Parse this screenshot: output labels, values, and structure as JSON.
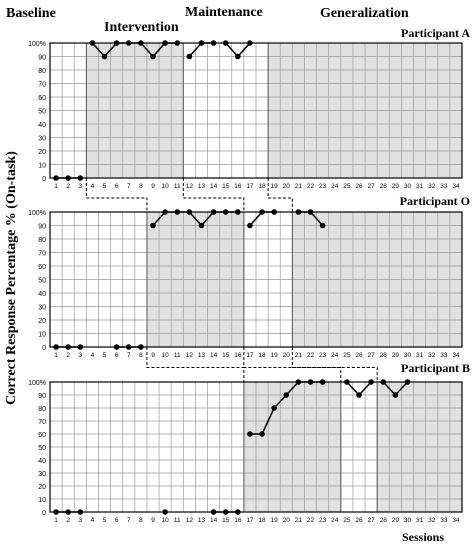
{
  "phase_labels": {
    "baseline": "Baseline",
    "intervention": "Intervention",
    "maintenance": "Maintenance",
    "generalization": "Generalization"
  },
  "ylabel": "Correct Response Percentage % (On-task)",
  "xlabel": "Sessions",
  "colors": {
    "shade": "#e0e0e0",
    "grid": "#9a9a9a",
    "line": "#000000"
  },
  "chart_data": [
    {
      "type": "line",
      "title": "Participant A",
      "ylim": [
        0,
        100
      ],
      "yticks": [
        "0",
        "10",
        "20",
        "30",
        "40",
        "50",
        "60",
        "70",
        "80",
        "90",
        "100%"
      ],
      "xticks": [
        "1",
        "2",
        "3",
        "4",
        "5",
        "6",
        "7",
        "8",
        "9",
        "10",
        "11",
        "12",
        "13",
        "14",
        "15",
        "16",
        "17",
        "18",
        "19",
        "20",
        "21",
        "22",
        "23",
        "24",
        "25",
        "26",
        "27",
        "28",
        "29",
        "30",
        "31",
        "32",
        "33",
        "34"
      ],
      "phase_bounds_after_session": [
        3,
        11,
        18
      ],
      "shaded_phases": [
        1,
        3
      ],
      "series": [
        {
          "phase": "baseline",
          "x": [
            1,
            2,
            3
          ],
          "y": [
            0,
            0,
            0
          ]
        },
        {
          "phase": "intervention",
          "x": [
            4,
            5,
            6,
            7,
            8,
            9,
            10,
            11
          ],
          "y": [
            100,
            90,
            100,
            100,
            100,
            90,
            100,
            100
          ]
        },
        {
          "phase": "maintenance",
          "x": [
            12,
            13,
            14
          ],
          "y": [
            90,
            100,
            100
          ]
        },
        {
          "phase": "maintenance",
          "x": [
            15,
            16,
            17
          ],
          "y": [
            100,
            90,
            100
          ]
        }
      ]
    },
    {
      "type": "line",
      "title": "Participant O",
      "ylim": [
        0,
        100
      ],
      "yticks": [
        "0",
        "10",
        "20",
        "30",
        "40",
        "50",
        "60",
        "70",
        "80",
        "90",
        "100%"
      ],
      "xticks": [
        "1",
        "2",
        "3",
        "4",
        "5",
        "6",
        "7",
        "8",
        "9",
        "10",
        "11",
        "12",
        "13",
        "14",
        "15",
        "16",
        "17",
        "18",
        "19",
        "20",
        "21",
        "22",
        "23",
        "24",
        "25",
        "26",
        "27",
        "28",
        "29",
        "30",
        "31",
        "32",
        "33",
        "34"
      ],
      "phase_bounds_after_session": [
        8,
        16,
        20
      ],
      "shaded_phases": [
        1,
        3
      ],
      "series": [
        {
          "phase": "baseline",
          "x": [
            1,
            2,
            3
          ],
          "y": [
            0,
            0,
            0
          ]
        },
        {
          "phase": "baseline",
          "x": [
            6,
            7,
            8
          ],
          "y": [
            0,
            0,
            0
          ]
        },
        {
          "phase": "intervention",
          "x": [
            9,
            10,
            11,
            12,
            13,
            14,
            15,
            16
          ],
          "y": [
            90,
            100,
            100,
            100,
            90,
            100,
            100,
            100
          ]
        },
        {
          "phase": "maintenance",
          "x": [
            17,
            18,
            19
          ],
          "y": [
            90,
            100,
            100
          ]
        },
        {
          "phase": "generalization",
          "x": [
            21,
            22,
            23
          ],
          "y": [
            100,
            100,
            90
          ]
        }
      ]
    },
    {
      "type": "line",
      "title": "Participant B",
      "ylim": [
        0,
        100
      ],
      "yticks": [
        "0",
        "10",
        "20",
        "30",
        "40",
        "50",
        "60",
        "70",
        "80",
        "90",
        "100%"
      ],
      "xticks": [
        "1",
        "2",
        "3",
        "4",
        "5",
        "6",
        "7",
        "8",
        "9",
        "10",
        "11",
        "12",
        "13",
        "14",
        "15",
        "16",
        "17",
        "18",
        "19",
        "20",
        "21",
        "22",
        "23",
        "24",
        "25",
        "26",
        "27",
        "28",
        "29",
        "30",
        "31",
        "32",
        "33",
        "34"
      ],
      "phase_bounds_after_session": [
        16,
        24,
        27
      ],
      "shaded_phases": [
        1,
        3
      ],
      "series": [
        {
          "phase": "baseline",
          "x": [
            1,
            2,
            3
          ],
          "y": [
            0,
            0,
            0
          ]
        },
        {
          "phase": "baseline",
          "x": [
            10
          ],
          "y": [
            0
          ]
        },
        {
          "phase": "baseline",
          "x": [
            14,
            15,
            16
          ],
          "y": [
            0,
            0,
            0
          ]
        },
        {
          "phase": "intervention",
          "x": [
            17,
            18,
            19,
            20,
            21,
            22,
            23
          ],
          "y": [
            60,
            60,
            80,
            90,
            100,
            100,
            100
          ]
        },
        {
          "phase": "maintenance",
          "x": [
            25,
            26,
            27
          ],
          "y": [
            100,
            90,
            100
          ]
        },
        {
          "phase": "generalization",
          "x": [
            28,
            29,
            30
          ],
          "y": [
            100,
            90,
            100
          ]
        }
      ]
    }
  ]
}
